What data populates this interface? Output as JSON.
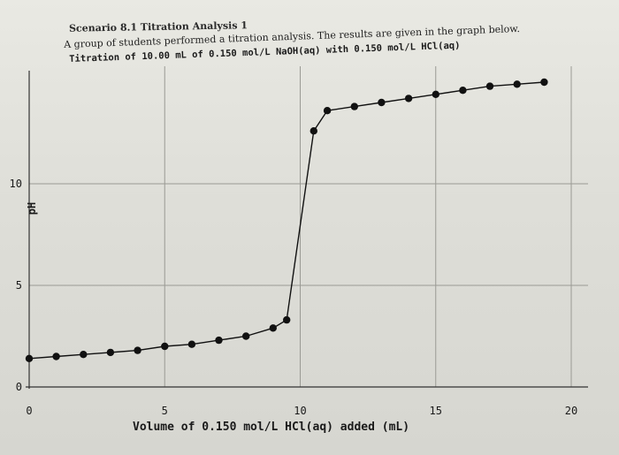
{
  "header": {
    "scenario": "Scenario 8.1 Titration Analysis 1",
    "intro": "A group of students performed a titration analysis. The results are given in the graph below."
  },
  "chart_data": {
    "type": "line",
    "title": "Titration of 10.00 mL of 0.150 mol/L NaOH(aq) with 0.150 mol/L HCl(aq)",
    "xlabel": "Volume of 0.150 mol/L HCl(aq) added (mL)",
    "ylabel": "pH",
    "xlim": [
      0,
      20
    ],
    "ylim": [
      0,
      14
    ],
    "x_ticks": [
      "0",
      "5",
      "10",
      "15",
      "20"
    ],
    "y_ticks": [
      "0",
      "5",
      "10"
    ],
    "grid": true,
    "series": [
      {
        "x": [
          0,
          1,
          2,
          3,
          4,
          5,
          6,
          7,
          8,
          9,
          9.5,
          10.5,
          11,
          12,
          13,
          14,
          15,
          16,
          17,
          18,
          19
        ],
        "values": [
          1.4,
          1.5,
          1.6,
          1.7,
          1.8,
          2.0,
          2.1,
          2.3,
          2.5,
          2.9,
          3.3,
          12.6,
          13.6,
          13.8,
          14.0,
          14.2,
          14.4,
          14.6,
          14.8,
          14.9,
          15.0
        ],
        "color": "#111111"
      }
    ]
  }
}
